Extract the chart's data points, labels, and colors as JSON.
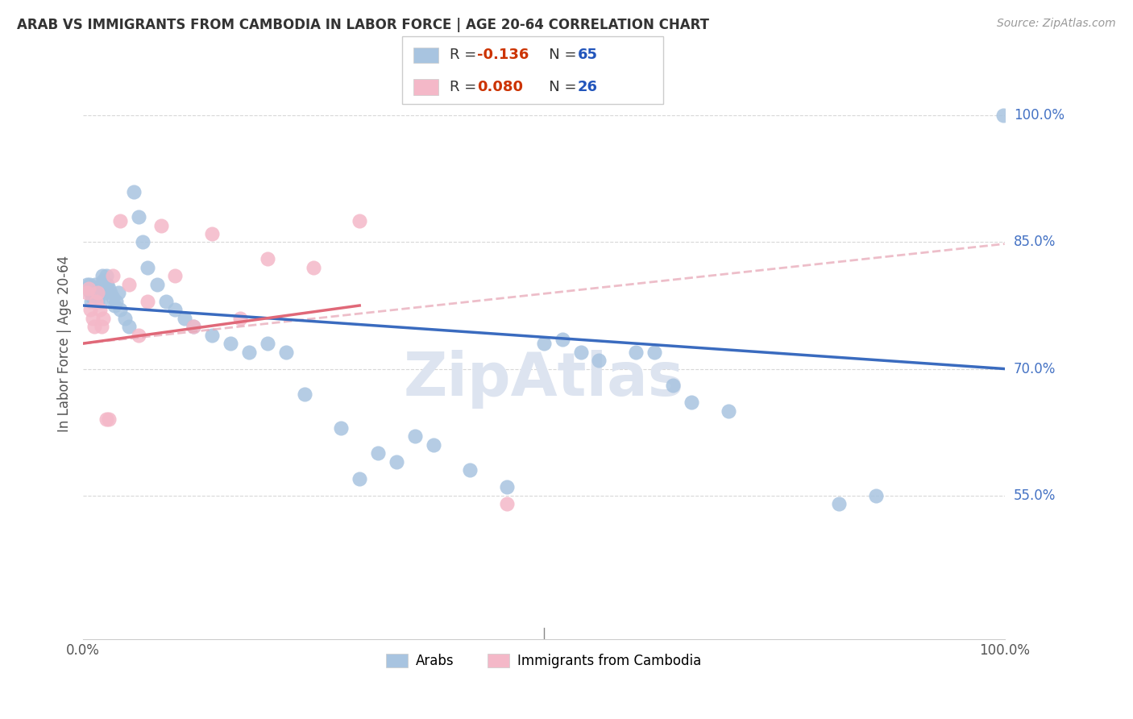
{
  "title": "ARAB VS IMMIGRANTS FROM CAMBODIA IN LABOR FORCE | AGE 20-64 CORRELATION CHART",
  "source": "Source: ZipAtlas.com",
  "ylabel": "In Labor Force | Age 20-64",
  "xlim": [
    0.0,
    1.0
  ],
  "ylim": [
    0.38,
    1.08
  ],
  "ytick_labels": [
    "55.0%",
    "70.0%",
    "85.0%",
    "100.0%"
  ],
  "ytick_values": [
    0.55,
    0.7,
    0.85,
    1.0
  ],
  "arab_R": -0.136,
  "arab_N": 65,
  "camb_R": 0.08,
  "camb_N": 26,
  "arab_color": "#a8c4e0",
  "camb_color": "#f4b8c8",
  "arab_line_color": "#3a6bbf",
  "camb_line_color": "#e06878",
  "camb_dash_color": "#e8a8b8",
  "background_color": "#ffffff",
  "grid_color": "#d8d8d8",
  "arab_line_start_y": 0.775,
  "arab_line_end_y": 0.7,
  "camb_line_start_y": 0.73,
  "camb_line_solid_end_x": 0.3,
  "camb_line_solid_end_y": 0.775,
  "camb_line_dash_end_y": 0.848,
  "arab_x": [
    0.004,
    0.006,
    0.007,
    0.008,
    0.009,
    0.01,
    0.011,
    0.012,
    0.013,
    0.014,
    0.015,
    0.016,
    0.017,
    0.018,
    0.019,
    0.02,
    0.021,
    0.022,
    0.023,
    0.025,
    0.026,
    0.028,
    0.03,
    0.032,
    0.034,
    0.036,
    0.038,
    0.04,
    0.045,
    0.05,
    0.055,
    0.06,
    0.065,
    0.07,
    0.08,
    0.09,
    0.1,
    0.11,
    0.12,
    0.14,
    0.16,
    0.18,
    0.2,
    0.22,
    0.24,
    0.28,
    0.3,
    0.32,
    0.34,
    0.36,
    0.38,
    0.42,
    0.46,
    0.5,
    0.52,
    0.54,
    0.56,
    0.6,
    0.62,
    0.64,
    0.66,
    0.7,
    0.82,
    0.86,
    0.999
  ],
  "arab_y": [
    0.8,
    0.795,
    0.8,
    0.79,
    0.78,
    0.785,
    0.79,
    0.795,
    0.8,
    0.79,
    0.785,
    0.78,
    0.795,
    0.79,
    0.78,
    0.8,
    0.81,
    0.805,
    0.79,
    0.81,
    0.8,
    0.795,
    0.79,
    0.785,
    0.775,
    0.78,
    0.79,
    0.77,
    0.76,
    0.75,
    0.91,
    0.88,
    0.85,
    0.82,
    0.8,
    0.78,
    0.77,
    0.76,
    0.75,
    0.74,
    0.73,
    0.72,
    0.73,
    0.72,
    0.67,
    0.63,
    0.57,
    0.6,
    0.59,
    0.62,
    0.61,
    0.58,
    0.56,
    0.73,
    0.735,
    0.72,
    0.71,
    0.72,
    0.72,
    0.68,
    0.66,
    0.65,
    0.54,
    0.55,
    1.0
  ],
  "camb_x": [
    0.004,
    0.006,
    0.008,
    0.01,
    0.012,
    0.014,
    0.016,
    0.018,
    0.02,
    0.022,
    0.025,
    0.028,
    0.032,
    0.04,
    0.05,
    0.06,
    0.07,
    0.085,
    0.1,
    0.12,
    0.14,
    0.17,
    0.2,
    0.25,
    0.3,
    0.46
  ],
  "camb_y": [
    0.79,
    0.795,
    0.77,
    0.76,
    0.75,
    0.78,
    0.79,
    0.77,
    0.75,
    0.76,
    0.64,
    0.64,
    0.81,
    0.875,
    0.8,
    0.74,
    0.78,
    0.87,
    0.81,
    0.75,
    0.86,
    0.76,
    0.83,
    0.82,
    0.875,
    0.54
  ]
}
